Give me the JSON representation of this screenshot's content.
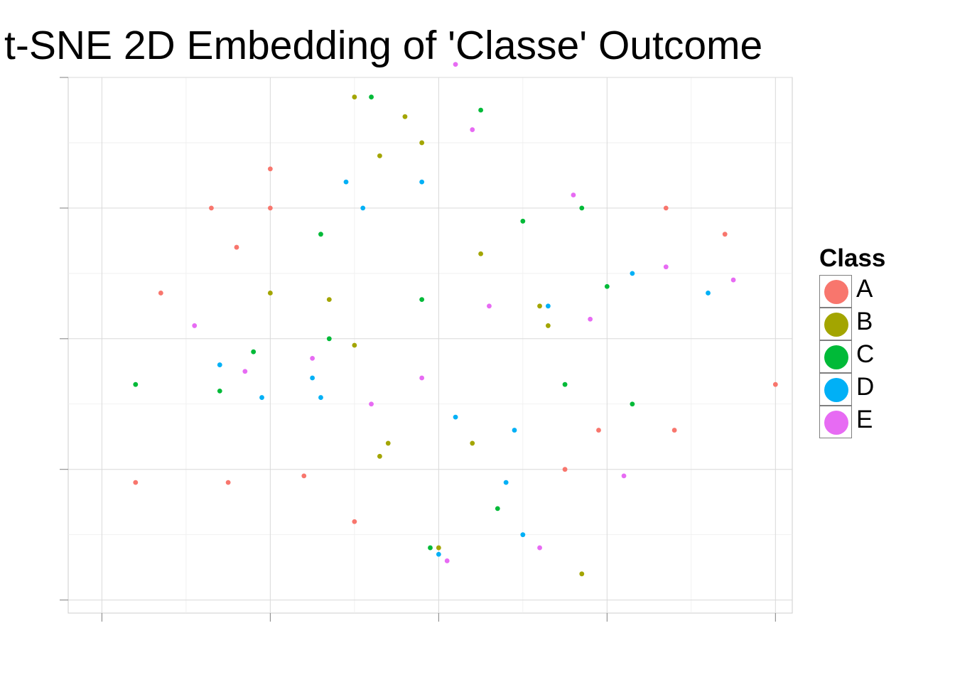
{
  "chart_data": {
    "type": "scatter",
    "title": "t-SNE 2D Embedding of 'Classe' Outcome",
    "xlabel": "",
    "ylabel": "",
    "xlim": [
      -44,
      42
    ],
    "ylim": [
      -42,
      40
    ],
    "x_ticks": [
      -40,
      -20,
      0,
      20,
      40
    ],
    "y_ticks": [
      -40,
      -20,
      0,
      20,
      40
    ],
    "grid": true,
    "tick_labels_shown": false,
    "legend": {
      "title": "Class",
      "position": "right",
      "entries": [
        "A",
        "B",
        "C",
        "D",
        "E"
      ]
    },
    "series": [
      {
        "name": "A",
        "color": "#F8766D",
        "points": [
          [
            -20,
            26
          ],
          [
            -27,
            20
          ],
          [
            -33,
            7
          ],
          [
            -24,
            14
          ],
          [
            -20,
            20
          ],
          [
            -36,
            -22
          ],
          [
            -25,
            -22
          ],
          [
            -16,
            -21
          ],
          [
            15,
            -20
          ],
          [
            19,
            -14
          ],
          [
            27,
            20
          ],
          [
            34,
            16
          ],
          [
            40,
            -7
          ],
          [
            28,
            -14
          ],
          [
            -10,
            -28
          ]
        ]
      },
      {
        "name": "B",
        "color": "#A3A500",
        "points": [
          [
            -10,
            37
          ],
          [
            -2,
            30
          ],
          [
            -20,
            7
          ],
          [
            -10,
            -1
          ],
          [
            -6,
            -16
          ],
          [
            -7,
            -18
          ],
          [
            4,
            -16
          ],
          [
            5,
            13
          ],
          [
            0,
            -32
          ],
          [
            17,
            -36
          ],
          [
            13,
            2
          ],
          [
            -13,
            6
          ],
          [
            12,
            5
          ],
          [
            -7,
            28
          ],
          [
            -4,
            34
          ]
        ]
      },
      {
        "name": "C",
        "color": "#00BA38",
        "points": [
          [
            -8,
            37
          ],
          [
            5,
            35
          ],
          [
            -14,
            16
          ],
          [
            -2,
            6
          ],
          [
            10,
            18
          ],
          [
            17,
            20
          ],
          [
            15,
            -7
          ],
          [
            23,
            -10
          ],
          [
            -36,
            -7
          ],
          [
            -26,
            -8
          ],
          [
            -1,
            -32
          ],
          [
            7,
            -26
          ],
          [
            -13,
            0
          ],
          [
            20,
            8
          ],
          [
            -22,
            -2
          ]
        ]
      },
      {
        "name": "D",
        "color": "#00B0F6",
        "points": [
          [
            -11,
            24
          ],
          [
            -2,
            24
          ],
          [
            -9,
            20
          ],
          [
            0,
            -33
          ],
          [
            10,
            -30
          ],
          [
            13,
            5
          ],
          [
            23,
            10
          ],
          [
            32,
            7
          ],
          [
            -21,
            -9
          ],
          [
            -26,
            -4
          ],
          [
            2,
            -12
          ],
          [
            9,
            -14
          ],
          [
            -15,
            -6
          ],
          [
            -14,
            -9
          ],
          [
            8,
            -22
          ]
        ]
      },
      {
        "name": "E",
        "color": "#E76BF3",
        "points": [
          [
            2,
            42
          ],
          [
            4,
            32
          ],
          [
            16,
            22
          ],
          [
            27,
            11
          ],
          [
            35,
            9
          ],
          [
            18,
            3
          ],
          [
            -15,
            -3
          ],
          [
            -23,
            -5
          ],
          [
            -8,
            -10
          ],
          [
            -29,
            2
          ],
          [
            -2,
            -6
          ],
          [
            6,
            5
          ],
          [
            1,
            -34
          ],
          [
            12,
            -32
          ],
          [
            22,
            -21
          ]
        ]
      }
    ]
  }
}
